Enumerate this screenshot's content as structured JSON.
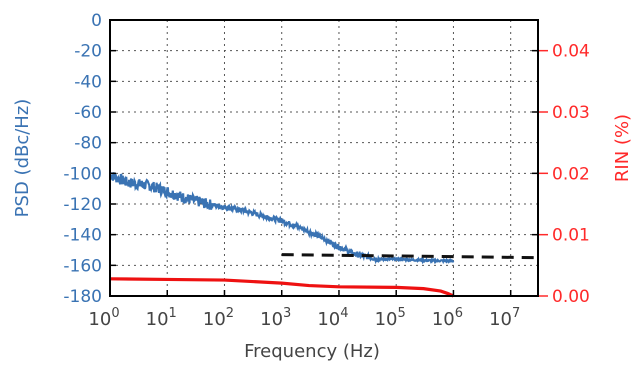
{
  "chart_data": {
    "type": "line",
    "xlabel": "Frequency (Hz)",
    "ylabel_left": "PSD (dBc/Hz)",
    "ylabel_right": "RIN  (%)",
    "x_scale": "log",
    "xlim": [
      1,
      30000000
    ],
    "ylim_left": [
      -180,
      0
    ],
    "ylim_right": [
      0,
      0.045
    ],
    "grid": true,
    "x_ticks": [
      {
        "base": "10",
        "exp": "0",
        "value": 1
      },
      {
        "base": "10",
        "exp": "1",
        "value": 10
      },
      {
        "base": "10",
        "exp": "2",
        "value": 100
      },
      {
        "base": "10",
        "exp": "3",
        "value": 1000
      },
      {
        "base": "10",
        "exp": "4",
        "value": 10000
      },
      {
        "base": "10",
        "exp": "5",
        "value": 100000
      },
      {
        "base": "10",
        "exp": "6",
        "value": 1000000
      },
      {
        "base": "10",
        "exp": "7",
        "value": 10000000
      }
    ],
    "y_ticks_left": [
      "0",
      "-20",
      "-40",
      "-60",
      "-80",
      "-100",
      "-120",
      "-140",
      "-160",
      "-180"
    ],
    "y_ticks_right": [
      "0.04",
      "0.03",
      "0.02",
      "0.01",
      "0.00"
    ],
    "series": [
      {
        "axis": "left",
        "color": "#3a73b3",
        "style": "solid-noisy",
        "x": [
          1,
          2,
          5,
          10,
          20,
          50,
          100,
          200,
          500,
          1000,
          2000,
          5000,
          10000,
          20000,
          50000,
          100000,
          200000,
          500000,
          1000000
        ],
        "y": [
          -101,
          -106,
          -108,
          -112,
          -116,
          -120,
          -122,
          -124,
          -128,
          -131,
          -135,
          -142,
          -148,
          -153,
          -156,
          -156,
          -156.5,
          -157,
          -157
        ]
      },
      {
        "axis": "left",
        "color": "#111111",
        "style": "dashed",
        "x": [
          1000,
          30000000
        ],
        "y": [
          -153,
          -155
        ]
      },
      {
        "axis": "right",
        "color": "#ee1111",
        "style": "solid",
        "x": [
          1,
          10,
          100,
          1000,
          3000,
          10000,
          100000,
          300000,
          600000,
          800000,
          1000000
        ],
        "y": [
          0.0028,
          0.0027,
          0.0026,
          0.0021,
          0.0017,
          0.0015,
          0.0014,
          0.0012,
          0.0008,
          0.0004,
          0.0
        ]
      }
    ]
  }
}
